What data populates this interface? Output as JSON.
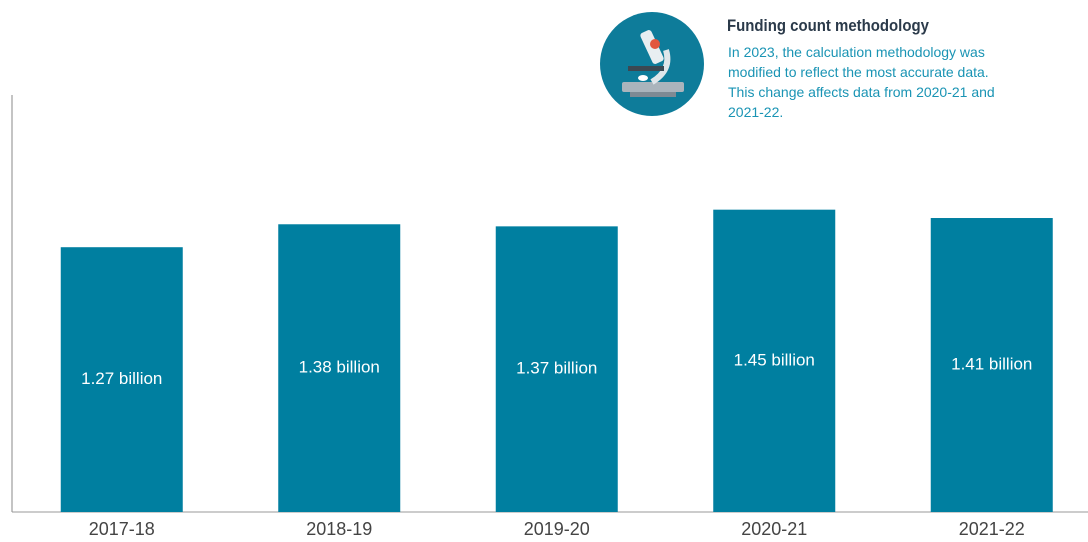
{
  "chart_data": {
    "type": "bar",
    "categories": [
      "2017-18",
      "2018-19",
      "2019-20",
      "2020-21",
      "2021-22"
    ],
    "values": [
      1.27,
      1.38,
      1.37,
      1.45,
      1.41
    ],
    "value_labels": [
      "1.27 billion",
      "1.38 billion",
      "1.37 billion",
      "1.45 billion",
      "1.41 billion"
    ],
    "color": "#007fa0",
    "ylim": [
      0,
      2
    ],
    "annotation": {
      "title": "Funding count methodology",
      "lines": [
        "In 2023, the calculation methodology was",
        "modified to reflect the most accurate data.",
        "This change affects data from 2020-21 and",
        "2021-22."
      ]
    }
  }
}
